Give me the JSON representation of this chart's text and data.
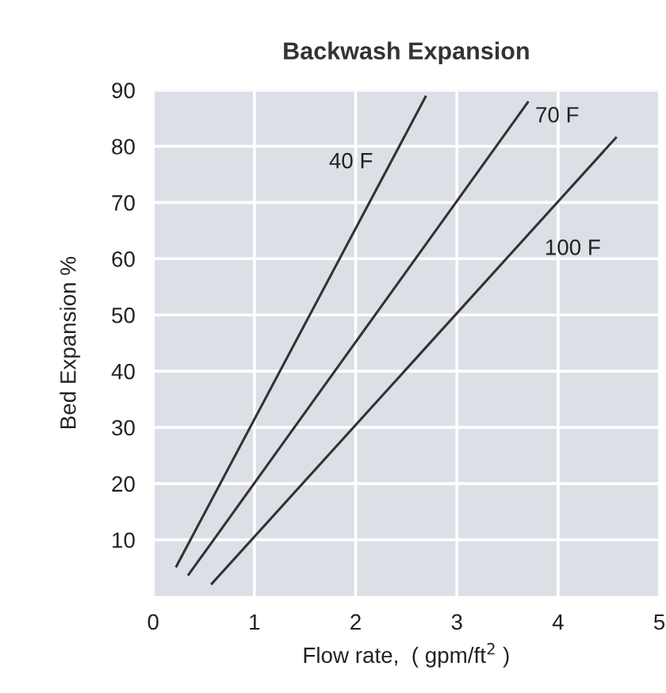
{
  "chart_data": {
    "type": "line",
    "title": "Backwash Expansion",
    "xlabel": "Flow rate,  ( gpm/ft$^{2}$ )",
    "ylabel": "Bed Expansion %",
    "xlim": [
      0,
      5
    ],
    "ylim": [
      0,
      90
    ],
    "xticks": [
      0,
      1,
      2,
      3,
      4,
      5
    ],
    "yticks": [
      10,
      20,
      30,
      40,
      50,
      60,
      70,
      80,
      90
    ],
    "grid": true,
    "marker": "none",
    "line_style": "solid",
    "series": [
      {
        "name": "40 F",
        "color": "#333333",
        "x": [
          0.23,
          2.69
        ],
        "values": [
          5.3,
          88.8
        ]
      },
      {
        "name": "70 F",
        "color": "#333333",
        "x": [
          0.35,
          3.7
        ],
        "values": [
          3.8,
          87.8
        ]
      },
      {
        "name": "100 F",
        "color": "#333333",
        "x": [
          0.58,
          4.57
        ],
        "values": [
          2.2,
          81.5
        ]
      }
    ]
  }
}
